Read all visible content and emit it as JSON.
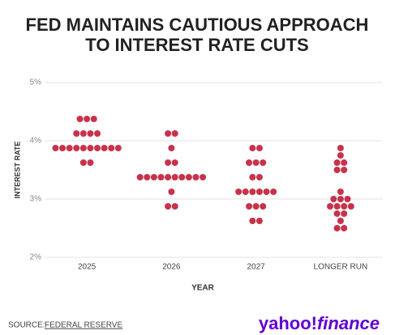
{
  "chart_data": {
    "type": "dot",
    "title": [
      "FED MAINTAINS CAUTIOUS APPROACH",
      "TO INTEREST RATE CUTS"
    ],
    "y_label": "INTEREST RATE",
    "x_label": "YEAR",
    "categories": [
      "2025",
      "2026",
      "2027",
      "LONGER RUN"
    ],
    "values": [
      [
        4.375,
        4.375,
        4.375,
        4.125,
        4.125,
        4.125,
        4.125,
        3.875,
        3.875,
        3.875,
        3.875,
        3.875,
        3.875,
        3.875,
        3.875,
        3.875,
        3.875,
        3.625,
        3.625
      ],
      [
        4.125,
        4.125,
        3.875,
        3.625,
        3.625,
        3.375,
        3.375,
        3.375,
        3.375,
        3.375,
        3.375,
        3.375,
        3.375,
        3.375,
        3.375,
        3.125,
        2.875,
        2.875
      ],
      [
        3.875,
        3.875,
        3.625,
        3.625,
        3.625,
        3.375,
        3.375,
        3.125,
        3.125,
        3.125,
        3.125,
        3.125,
        3.125,
        2.875,
        2.875,
        2.875,
        2.625,
        2.625
      ],
      [
        3.875,
        3.75,
        3.625,
        3.625,
        3.5,
        3.5,
        3.125,
        3.0,
        3.0,
        3.0,
        2.875,
        2.875,
        2.875,
        2.875,
        2.75,
        2.75,
        2.625,
        2.5,
        2.5
      ]
    ],
    "color": "#c8324a",
    "ylim": [
      2,
      5
    ],
    "yticks": [
      {
        "value": 2,
        "label": "2%"
      },
      {
        "value": 3,
        "label": "3%"
      },
      {
        "value": 4,
        "label": "4%"
      },
      {
        "value": 5,
        "label": "5%"
      }
    ],
    "grid": true,
    "source_prefix": "SOURCE:",
    "source": "FEDERAL RESERVE",
    "brand": [
      "yahoo!",
      "finance"
    ]
  }
}
